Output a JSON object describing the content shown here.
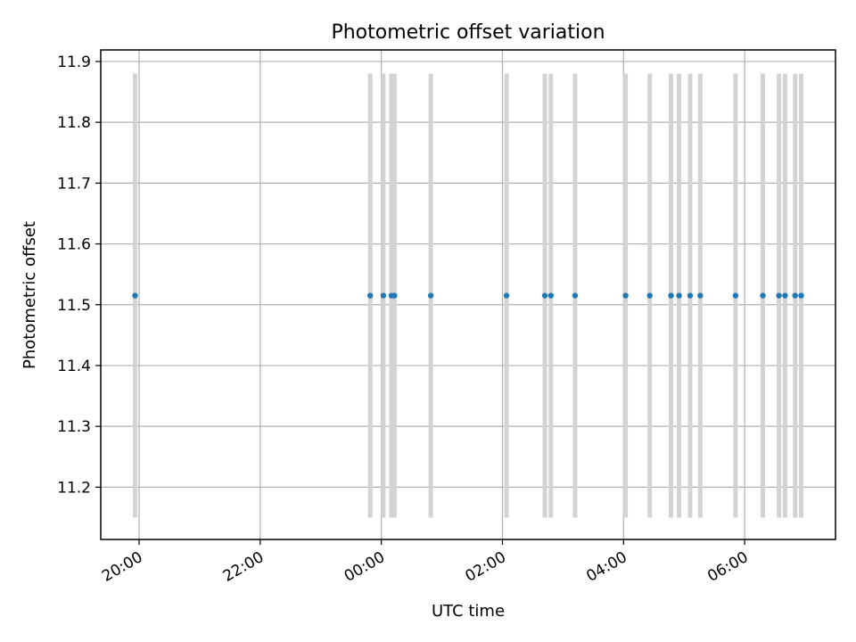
{
  "colors": {
    "point": "#1f77b4",
    "errorbar": "#d3d3d3",
    "grid": "#b0b0b0"
  },
  "chart_data": {
    "type": "scatter",
    "title": "Photometric offset variation",
    "xlabel": "UTC time",
    "ylabel": "Photometric offset",
    "grid": true,
    "x_ticks": [
      "20:00",
      "22:00",
      "00:00",
      "02:00",
      "04:00",
      "06:00"
    ],
    "y_ticks": [
      "11.2",
      "11.3",
      "11.4",
      "11.5",
      "11.6",
      "11.7",
      "11.8",
      "11.9"
    ],
    "xlim": [
      "19:22",
      "07:30"
    ],
    "ylim": [
      11.114,
      11.919
    ],
    "series": [
      {
        "x": [
          "19:56",
          "23:49",
          "00:02",
          "00:10",
          "00:13",
          "00:49",
          "02:04",
          "02:42",
          "02:48",
          "03:12",
          "04:02",
          "04:26",
          "04:47",
          "04:55",
          "05:06",
          "05:16",
          "05:51",
          "06:18",
          "06:34",
          "06:40",
          "06:50",
          "06:56"
        ],
        "y": [
          11.515,
          11.515,
          11.515,
          11.515,
          11.515,
          11.515,
          11.515,
          11.515,
          11.515,
          11.515,
          11.515,
          11.515,
          11.515,
          11.515,
          11.515,
          11.515,
          11.515,
          11.515,
          11.515,
          11.515,
          11.515,
          11.515
        ],
        "y_err_low": 11.15,
        "y_err_high": 11.88
      }
    ]
  }
}
